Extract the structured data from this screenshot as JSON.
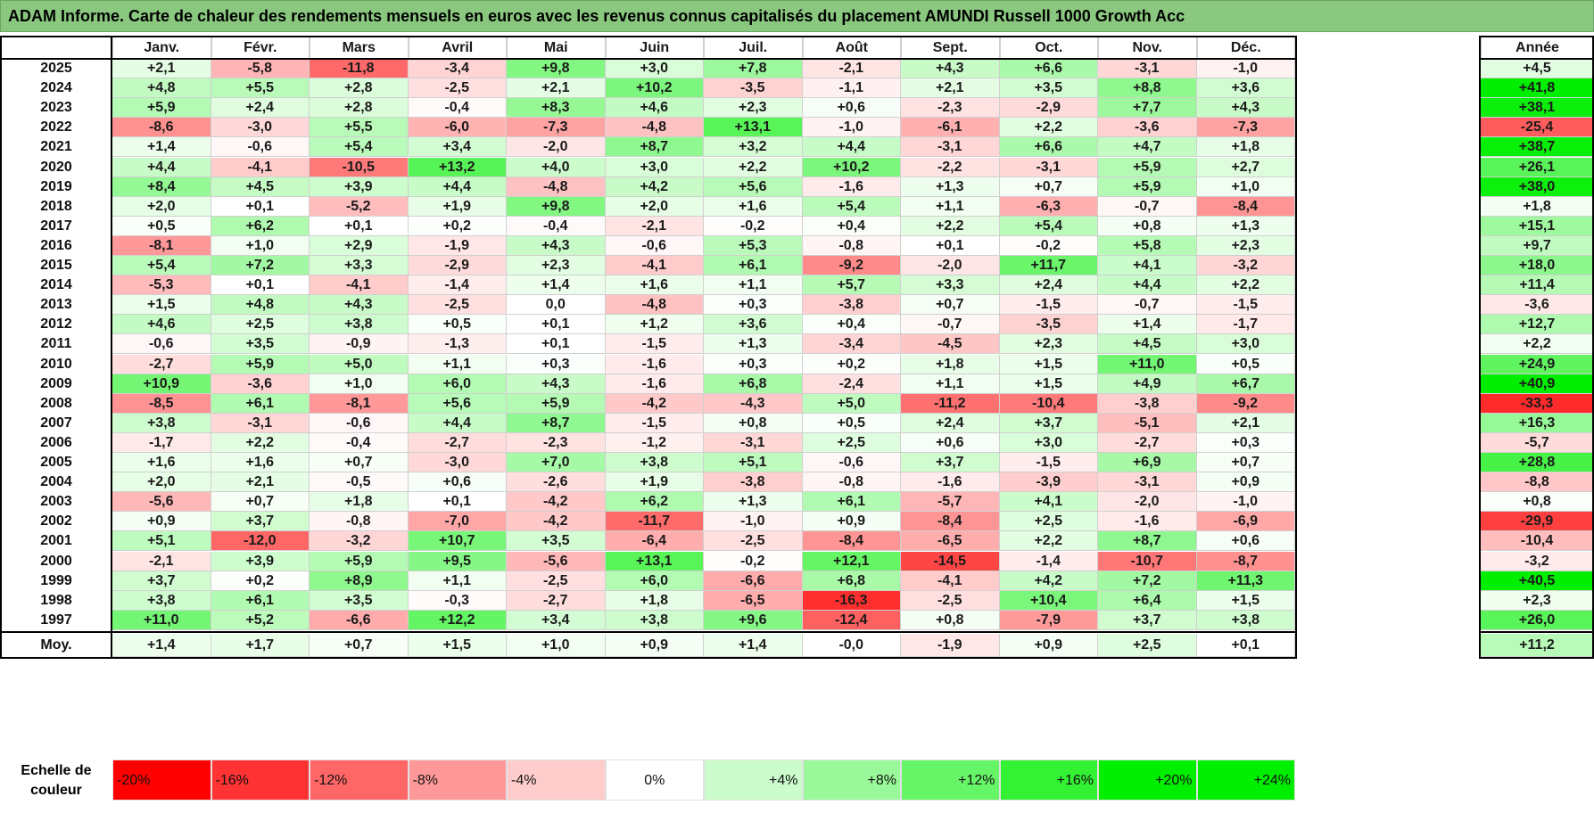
{
  "title": "ADAM Informe. Carte de chaleur des rendements mensuels en euros avec les revenus connus capitalisés du placement AMUNDI Russell 1000 Growth Acc",
  "chart_data": {
    "type": "heatmap",
    "title": "ADAM Informe. Carte de chaleur des rendements mensuels en euros avec les revenus connus capitalisés du placement AMUNDI Russell 1000 Growth Acc",
    "columns": [
      "Janv.",
      "Févr.",
      "Mars",
      "Avril",
      "Mai",
      "Juin",
      "Juil.",
      "Août",
      "Sept.",
      "Oct.",
      "Nov.",
      "Déc."
    ],
    "year_column": "Année",
    "rows": [
      {
        "year": "2025",
        "values": [
          "+2,1",
          "-5,8",
          "-11,8",
          "-3,4",
          "+9,8",
          "+3,0",
          "+7,8",
          "-2,1",
          "+4,3",
          "+6,6",
          "-3,1",
          "-1,0"
        ],
        "annual": "+4,5"
      },
      {
        "year": "2024",
        "values": [
          "+4,8",
          "+5,5",
          "+2,8",
          "-2,5",
          "+2,1",
          "+10,2",
          "-3,5",
          "-1,1",
          "+2,1",
          "+3,5",
          "+8,8",
          "+3,6"
        ],
        "annual": "+41,8"
      },
      {
        "year": "2023",
        "values": [
          "+5,9",
          "+2,4",
          "+2,8",
          "-0,4",
          "+8,3",
          "+4,6",
          "+2,3",
          "+0,6",
          "-2,3",
          "-2,9",
          "+7,7",
          "+4,3"
        ],
        "annual": "+38,1"
      },
      {
        "year": "2022",
        "values": [
          "-8,6",
          "-3,0",
          "+5,5",
          "-6,0",
          "-7,3",
          "-4,8",
          "+13,1",
          "-1,0",
          "-6,1",
          "+2,2",
          "-3,6",
          "-7,3"
        ],
        "annual": "-25,4"
      },
      {
        "year": "2021",
        "values": [
          "+1,4",
          "-0,6",
          "+5,4",
          "+3,4",
          "-2,0",
          "+8,7",
          "+3,2",
          "+4,4",
          "-3,1",
          "+6,6",
          "+4,7",
          "+1,8"
        ],
        "annual": "+38,7"
      },
      {
        "year": "2020",
        "values": [
          "+4,4",
          "-4,1",
          "-10,5",
          "+13,2",
          "+4,0",
          "+3,0",
          "+2,2",
          "+10,2",
          "-2,2",
          "-3,1",
          "+5,9",
          "+2,7"
        ],
        "annual": "+26,1"
      },
      {
        "year": "2019",
        "values": [
          "+8,4",
          "+4,5",
          "+3,9",
          "+4,4",
          "-4,8",
          "+4,2",
          "+5,6",
          "-1,6",
          "+1,3",
          "+0,7",
          "+5,9",
          "+1,0"
        ],
        "annual": "+38,0"
      },
      {
        "year": "2018",
        "values": [
          "+2,0",
          "+0,1",
          "-5,2",
          "+1,9",
          "+9,8",
          "+2,0",
          "+1,6",
          "+5,4",
          "+1,1",
          "-6,3",
          "-0,7",
          "-8,4"
        ],
        "annual": "+1,8"
      },
      {
        "year": "2017",
        "values": [
          "+0,5",
          "+6,2",
          "+0,1",
          "+0,2",
          "-0,4",
          "-2,1",
          "-0,2",
          "+0,4",
          "+2,2",
          "+5,4",
          "+0,8",
          "+1,3"
        ],
        "annual": "+15,1"
      },
      {
        "year": "2016",
        "values": [
          "-8,1",
          "+1,0",
          "+2,9",
          "-1,9",
          "+4,3",
          "-0,6",
          "+5,3",
          "-0,8",
          "+0,1",
          "-0,2",
          "+5,8",
          "+2,3"
        ],
        "annual": "+9,7"
      },
      {
        "year": "2015",
        "values": [
          "+5,4",
          "+7,2",
          "+3,3",
          "-2,9",
          "+2,3",
          "-4,1",
          "+6,1",
          "-9,2",
          "-2,0",
          "+11,7",
          "+4,1",
          "-3,2"
        ],
        "annual": "+18,0"
      },
      {
        "year": "2014",
        "values": [
          "-5,3",
          "+0,1",
          "-4,1",
          "-1,4",
          "+1,4",
          "+1,6",
          "+1,1",
          "+5,7",
          "+3,3",
          "+2,4",
          "+4,4",
          "+2,2"
        ],
        "annual": "+11,4"
      },
      {
        "year": "2013",
        "values": [
          "+1,5",
          "+4,8",
          "+4,3",
          "-2,5",
          "0,0",
          "-4,8",
          "+0,3",
          "-3,8",
          "+0,7",
          "-1,5",
          "-0,7",
          "-1,5"
        ],
        "annual": "-3,6"
      },
      {
        "year": "2012",
        "values": [
          "+4,6",
          "+2,5",
          "+3,8",
          "+0,5",
          "+0,1",
          "+1,2",
          "+3,6",
          "+0,4",
          "-0,7",
          "-3,5",
          "+1,4",
          "-1,7"
        ],
        "annual": "+12,7"
      },
      {
        "year": "2011",
        "values": [
          "-0,6",
          "+3,5",
          "-0,9",
          "-1,3",
          "+0,1",
          "-1,5",
          "+1,3",
          "-3,4",
          "-4,5",
          "+2,3",
          "+4,5",
          "+3,0"
        ],
        "annual": "+2,2"
      },
      {
        "year": "2010",
        "values": [
          "-2,7",
          "+5,9",
          "+5,0",
          "+1,1",
          "+0,3",
          "-1,6",
          "+0,3",
          "+0,2",
          "+1,8",
          "+1,5",
          "+11,0",
          "+0,5"
        ],
        "annual": "+24,9"
      },
      {
        "year": "2009",
        "values": [
          "+10,9",
          "-3,6",
          "+1,0",
          "+6,0",
          "+4,3",
          "-1,6",
          "+6,8",
          "-2,4",
          "+1,1",
          "+1,5",
          "+4,9",
          "+6,7"
        ],
        "annual": "+40,9"
      },
      {
        "year": "2008",
        "values": [
          "-8,5",
          "+6,1",
          "-8,1",
          "+5,6",
          "+5,9",
          "-4,2",
          "-4,3",
          "+5,0",
          "-11,2",
          "-10,4",
          "-3,8",
          "-9,2"
        ],
        "annual": "-33,3"
      },
      {
        "year": "2007",
        "values": [
          "+3,8",
          "-3,1",
          "-0,6",
          "+4,4",
          "+8,7",
          "-1,5",
          "+0,8",
          "+0,5",
          "+2,4",
          "+3,7",
          "-5,1",
          "+2,1"
        ],
        "annual": "+16,3"
      },
      {
        "year": "2006",
        "values": [
          "-1,7",
          "+2,2",
          "-0,4",
          "-2,7",
          "-2,3",
          "-1,2",
          "-3,1",
          "+2,5",
          "+0,6",
          "+3,0",
          "-2,7",
          "+0,3"
        ],
        "annual": "-5,7"
      },
      {
        "year": "2005",
        "values": [
          "+1,6",
          "+1,6",
          "+0,7",
          "-3,0",
          "+7,0",
          "+3,8",
          "+5,1",
          "-0,6",
          "+3,7",
          "-1,5",
          "+6,9",
          "+0,7"
        ],
        "annual": "+28,8"
      },
      {
        "year": "2004",
        "values": [
          "+2,0",
          "+2,1",
          "-0,5",
          "+0,6",
          "-2,6",
          "+1,9",
          "-3,8",
          "-0,8",
          "-1,6",
          "-3,9",
          "-3,1",
          "+0,9"
        ],
        "annual": "-8,8"
      },
      {
        "year": "2003",
        "values": [
          "-5,6",
          "+0,7",
          "+1,8",
          "+0,1",
          "-4,2",
          "+6,2",
          "+1,3",
          "+6,1",
          "-5,7",
          "+4,1",
          "-2,0",
          "-1,0"
        ],
        "annual": "+0,8"
      },
      {
        "year": "2002",
        "values": [
          "+0,9",
          "+3,7",
          "-0,8",
          "-7,0",
          "-4,2",
          "-11,7",
          "-1,0",
          "+0,9",
          "-8,4",
          "+2,5",
          "-1,6",
          "-6,9"
        ],
        "annual": "-29,9"
      },
      {
        "year": "2001",
        "values": [
          "+5,1",
          "-12,0",
          "-3,2",
          "+10,7",
          "+3,5",
          "-6,4",
          "-2,5",
          "-8,4",
          "-6,5",
          "+2,2",
          "+8,7",
          "+0,6"
        ],
        "annual": "-10,4"
      },
      {
        "year": "2000",
        "values": [
          "-2,1",
          "+3,9",
          "+5,9",
          "+9,5",
          "-5,6",
          "+13,1",
          "-0,2",
          "+12,1",
          "-14,5",
          "-1,4",
          "-10,7",
          "-8,7"
        ],
        "annual": "-3,2"
      },
      {
        "year": "1999",
        "values": [
          "+3,7",
          "+0,2",
          "+8,9",
          "+1,1",
          "-2,5",
          "+6,0",
          "-6,6",
          "+6,8",
          "-4,1",
          "+4,2",
          "+7,2",
          "+11,3"
        ],
        "annual": "+40,5"
      },
      {
        "year": "1998",
        "values": [
          "+3,8",
          "+6,1",
          "+3,5",
          "-0,3",
          "-2,7",
          "+1,8",
          "-6,5",
          "-16,3",
          "-2,5",
          "+10,4",
          "+6,4",
          "+1,5"
        ],
        "annual": "+2,3"
      },
      {
        "year": "1997",
        "values": [
          "+11,0",
          "+5,2",
          "-6,6",
          "+12,2",
          "+3,4",
          "+3,8",
          "+9,6",
          "-12,4",
          "+0,8",
          "-7,9",
          "+3,7",
          "+3,8"
        ],
        "annual": "+26,0"
      }
    ],
    "average": {
      "label": "Moy.",
      "values": [
        "+1,4",
        "+1,7",
        "+0,7",
        "+1,5",
        "+1,0",
        "+0,9",
        "+1,4",
        "-0,0",
        "-1,9",
        "+0,9",
        "+2,5",
        "+0,1"
      ],
      "annual": "+11,2"
    },
    "legend": {
      "label": "Echelle de couleur",
      "steps": [
        "-20%",
        "-16%",
        "-12%",
        "-8%",
        "-4%",
        "0%",
        "+4%",
        "+8%",
        "+12%",
        "+16%",
        "+20%",
        "+24%"
      ]
    },
    "colors": {
      "negative_max": "#ff0000",
      "neutral": "#ffffff",
      "positive_max": "#00ee00"
    }
  }
}
